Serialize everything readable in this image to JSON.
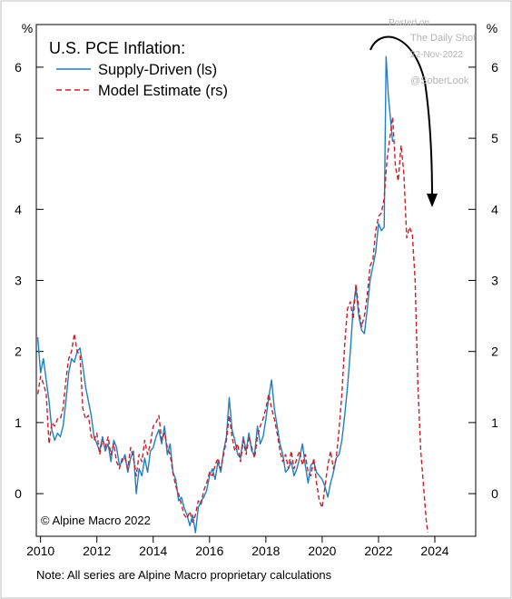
{
  "watermark": {
    "line1": "Posted on",
    "line2": "The Daily Shot",
    "line3": "22-Nov-2022",
    "line4": "@SoberLook"
  },
  "note": "Note: All series are Alpine Macro proprietary calculations",
  "chart_data": {
    "type": "line",
    "title": "U.S. PCE Inflation:",
    "credit": "© Alpine Macro 2022",
    "y_unit_label": "%",
    "ylim": [
      -0.6,
      6.6
    ],
    "yticks": [
      0,
      1,
      2,
      3,
      4,
      5,
      6
    ],
    "xlim": [
      2009.85,
      2025.45
    ],
    "xticks": [
      2010,
      2012,
      2014,
      2016,
      2018,
      2020,
      2022,
      2024
    ],
    "grid": false,
    "legend_position": "top-left",
    "annotation": "curved arrow pointing down from the 2022 peak",
    "series": [
      {
        "name": "Supply-Driven (ls)",
        "axis": "left",
        "color": "#1f7fc4",
        "style": "solid",
        "points": [
          [
            2009.9,
            2.2
          ],
          [
            2010.0,
            1.7
          ],
          [
            2010.1,
            1.9
          ],
          [
            2010.2,
            1.6
          ],
          [
            2010.3,
            1.3
          ],
          [
            2010.4,
            0.9
          ],
          [
            2010.5,
            0.75
          ],
          [
            2010.6,
            0.85
          ],
          [
            2010.7,
            0.8
          ],
          [
            2010.8,
            0.95
          ],
          [
            2010.9,
            1.3
          ],
          [
            2011.0,
            1.7
          ],
          [
            2011.1,
            1.9
          ],
          [
            2011.2,
            1.85
          ],
          [
            2011.3,
            2.0
          ],
          [
            2011.4,
            2.05
          ],
          [
            2011.5,
            1.8
          ],
          [
            2011.6,
            1.5
          ],
          [
            2011.7,
            1.3
          ],
          [
            2011.8,
            1.1
          ],
          [
            2011.9,
            0.8
          ],
          [
            2012.0,
            0.7
          ],
          [
            2012.1,
            0.6
          ],
          [
            2012.2,
            0.8
          ],
          [
            2012.3,
            0.6
          ],
          [
            2012.4,
            0.7
          ],
          [
            2012.5,
            0.45
          ],
          [
            2012.6,
            0.75
          ],
          [
            2012.7,
            0.65
          ],
          [
            2012.8,
            0.4
          ],
          [
            2012.9,
            0.45
          ],
          [
            2013.0,
            0.55
          ],
          [
            2013.1,
            0.3
          ],
          [
            2013.2,
            0.5
          ],
          [
            2013.3,
            0.6
          ],
          [
            2013.4,
            0.0
          ],
          [
            2013.5,
            0.35
          ],
          [
            2013.6,
            0.25
          ],
          [
            2013.7,
            0.5
          ],
          [
            2013.8,
            0.3
          ],
          [
            2013.9,
            0.6
          ],
          [
            2014.0,
            0.65
          ],
          [
            2014.1,
            0.8
          ],
          [
            2014.2,
            0.9
          ],
          [
            2014.3,
            0.7
          ],
          [
            2014.4,
            0.95
          ],
          [
            2014.5,
            0.55
          ],
          [
            2014.6,
            0.7
          ],
          [
            2014.7,
            0.3
          ],
          [
            2014.8,
            0.2
          ],
          [
            2014.9,
            -0.1
          ],
          [
            2015.0,
            -0.05
          ],
          [
            2015.1,
            -0.2
          ],
          [
            2015.2,
            -0.3
          ],
          [
            2015.3,
            -0.45
          ],
          [
            2015.4,
            -0.3
          ],
          [
            2015.5,
            -0.55
          ],
          [
            2015.6,
            -0.2
          ],
          [
            2015.7,
            -0.1
          ],
          [
            2015.8,
            -0.05
          ],
          [
            2015.9,
            0.05
          ],
          [
            2016.0,
            0.25
          ],
          [
            2016.1,
            0.35
          ],
          [
            2016.2,
            0.2
          ],
          [
            2016.3,
            0.45
          ],
          [
            2016.4,
            0.3
          ],
          [
            2016.5,
            0.6
          ],
          [
            2016.6,
            0.8
          ],
          [
            2016.7,
            1.35
          ],
          [
            2016.8,
            0.9
          ],
          [
            2016.9,
            0.75
          ],
          [
            2017.0,
            0.55
          ],
          [
            2017.1,
            0.5
          ],
          [
            2017.2,
            0.8
          ],
          [
            2017.3,
            0.6
          ],
          [
            2017.4,
            0.85
          ],
          [
            2017.5,
            0.6
          ],
          [
            2017.6,
            0.55
          ],
          [
            2017.7,
            0.95
          ],
          [
            2017.8,
            0.7
          ],
          [
            2017.9,
            0.8
          ],
          [
            2018.0,
            1.05
          ],
          [
            2018.1,
            1.35
          ],
          [
            2018.2,
            1.6
          ],
          [
            2018.3,
            1.2
          ],
          [
            2018.4,
            0.95
          ],
          [
            2018.5,
            0.7
          ],
          [
            2018.6,
            0.55
          ],
          [
            2018.7,
            0.3
          ],
          [
            2018.8,
            0.35
          ],
          [
            2018.9,
            0.45
          ],
          [
            2019.0,
            0.25
          ],
          [
            2019.1,
            0.35
          ],
          [
            2019.2,
            0.5
          ],
          [
            2019.3,
            0.7
          ],
          [
            2019.4,
            0.4
          ],
          [
            2019.5,
            0.15
          ],
          [
            2019.6,
            0.4
          ],
          [
            2019.7,
            0.45
          ],
          [
            2019.8,
            0.3
          ],
          [
            2019.9,
            0.25
          ],
          [
            2020.0,
            0.2
          ],
          [
            2020.1,
            0.1
          ],
          [
            2020.2,
            -0.05
          ],
          [
            2020.3,
            0.15
          ],
          [
            2020.4,
            0.3
          ],
          [
            2020.5,
            0.5
          ],
          [
            2020.6,
            0.55
          ],
          [
            2020.7,
            0.75
          ],
          [
            2020.8,
            1.1
          ],
          [
            2020.9,
            1.5
          ],
          [
            2021.0,
            2.0
          ],
          [
            2021.1,
            2.6
          ],
          [
            2021.2,
            2.9
          ],
          [
            2021.3,
            2.5
          ],
          [
            2021.4,
            2.3
          ],
          [
            2021.5,
            2.25
          ],
          [
            2021.6,
            2.6
          ],
          [
            2021.7,
            3.0
          ],
          [
            2021.8,
            3.2
          ],
          [
            2021.9,
            3.4
          ],
          [
            2022.0,
            3.8
          ],
          [
            2022.1,
            3.7
          ],
          [
            2022.2,
            3.75
          ],
          [
            2022.27,
            6.15
          ],
          [
            2022.35,
            5.6
          ],
          [
            2022.43,
            5.25
          ],
          [
            2022.5,
            4.95
          ]
        ]
      },
      {
        "name": "Model Estimate (rs)",
        "axis": "right",
        "color": "#c8202a",
        "style": "dashed",
        "points": [
          [
            2009.9,
            1.4
          ],
          [
            2010.0,
            1.65
          ],
          [
            2010.1,
            1.55
          ],
          [
            2010.2,
            1.4
          ],
          [
            2010.3,
            0.7
          ],
          [
            2010.4,
            1.0
          ],
          [
            2010.5,
            0.95
          ],
          [
            2010.6,
            1.05
          ],
          [
            2010.7,
            1.05
          ],
          [
            2010.8,
            1.2
          ],
          [
            2010.9,
            1.6
          ],
          [
            2011.0,
            1.9
          ],
          [
            2011.1,
            2.0
          ],
          [
            2011.2,
            2.25
          ],
          [
            2011.3,
            2.0
          ],
          [
            2011.4,
            1.95
          ],
          [
            2011.5,
            1.2
          ],
          [
            2011.6,
            1.05
          ],
          [
            2011.7,
            1.1
          ],
          [
            2011.8,
            0.8
          ],
          [
            2011.9,
            0.75
          ],
          [
            2012.0,
            0.85
          ],
          [
            2012.1,
            0.55
          ],
          [
            2012.2,
            0.75
          ],
          [
            2012.3,
            0.65
          ],
          [
            2012.4,
            0.8
          ],
          [
            2012.5,
            0.55
          ],
          [
            2012.6,
            0.7
          ],
          [
            2012.7,
            0.45
          ],
          [
            2012.8,
            0.35
          ],
          [
            2012.9,
            0.5
          ],
          [
            2013.0,
            0.5
          ],
          [
            2013.1,
            0.35
          ],
          [
            2013.2,
            0.65
          ],
          [
            2013.3,
            0.5
          ],
          [
            2013.4,
            0.25
          ],
          [
            2013.5,
            0.55
          ],
          [
            2013.6,
            0.45
          ],
          [
            2013.7,
            0.75
          ],
          [
            2013.8,
            0.55
          ],
          [
            2013.9,
            0.7
          ],
          [
            2014.0,
            0.95
          ],
          [
            2014.1,
            1.0
          ],
          [
            2014.2,
            1.1
          ],
          [
            2014.3,
            0.75
          ],
          [
            2014.4,
            0.85
          ],
          [
            2014.5,
            0.65
          ],
          [
            2014.6,
            0.55
          ],
          [
            2014.7,
            0.3
          ],
          [
            2014.8,
            0.1
          ],
          [
            2014.9,
            0.0
          ],
          [
            2015.0,
            -0.15
          ],
          [
            2015.1,
            -0.3
          ],
          [
            2015.2,
            -0.35
          ],
          [
            2015.3,
            -0.25
          ],
          [
            2015.4,
            -0.4
          ],
          [
            2015.5,
            -0.3
          ],
          [
            2015.6,
            -0.1
          ],
          [
            2015.7,
            -0.15
          ],
          [
            2015.8,
            0.05
          ],
          [
            2015.9,
            0.15
          ],
          [
            2016.0,
            0.3
          ],
          [
            2016.1,
            0.25
          ],
          [
            2016.2,
            0.4
          ],
          [
            2016.3,
            0.5
          ],
          [
            2016.4,
            0.35
          ],
          [
            2016.5,
            0.55
          ],
          [
            2016.6,
            0.75
          ],
          [
            2016.7,
            1.1
          ],
          [
            2016.8,
            0.8
          ],
          [
            2016.9,
            0.6
          ],
          [
            2017.0,
            0.7
          ],
          [
            2017.1,
            0.45
          ],
          [
            2017.2,
            0.75
          ],
          [
            2017.3,
            0.55
          ],
          [
            2017.4,
            0.8
          ],
          [
            2017.5,
            0.65
          ],
          [
            2017.6,
            0.5
          ],
          [
            2017.7,
            0.8
          ],
          [
            2017.8,
            0.95
          ],
          [
            2017.9,
            1.05
          ],
          [
            2018.0,
            1.2
          ],
          [
            2018.1,
            1.4
          ],
          [
            2018.2,
            1.2
          ],
          [
            2018.3,
            1.05
          ],
          [
            2018.4,
            0.85
          ],
          [
            2018.5,
            0.6
          ],
          [
            2018.6,
            0.45
          ],
          [
            2018.7,
            0.55
          ],
          [
            2018.8,
            0.35
          ],
          [
            2018.9,
            0.6
          ],
          [
            2019.0,
            0.35
          ],
          [
            2019.1,
            0.5
          ],
          [
            2019.2,
            0.6
          ],
          [
            2019.3,
            0.4
          ],
          [
            2019.4,
            0.55
          ],
          [
            2019.5,
            0.3
          ],
          [
            2019.6,
            0.25
          ],
          [
            2019.7,
            0.5
          ],
          [
            2019.8,
            0.15
          ],
          [
            2019.9,
            -0.1
          ],
          [
            2020.0,
            -0.2
          ],
          [
            2020.1,
            0.1
          ],
          [
            2020.2,
            0.4
          ],
          [
            2020.3,
            0.6
          ],
          [
            2020.4,
            0.35
          ],
          [
            2020.5,
            0.5
          ],
          [
            2020.6,
            0.9
          ],
          [
            2020.7,
            1.4
          ],
          [
            2020.8,
            2.1
          ],
          [
            2020.9,
            2.6
          ],
          [
            2021.0,
            2.7
          ],
          [
            2021.1,
            2.45
          ],
          [
            2021.2,
            2.95
          ],
          [
            2021.3,
            2.6
          ],
          [
            2021.4,
            2.35
          ],
          [
            2021.5,
            2.5
          ],
          [
            2021.6,
            2.8
          ],
          [
            2021.7,
            3.2
          ],
          [
            2021.8,
            3.3
          ],
          [
            2021.9,
            3.7
          ],
          [
            2022.0,
            3.9
          ],
          [
            2022.1,
            3.95
          ],
          [
            2022.2,
            4.15
          ],
          [
            2022.3,
            4.7
          ],
          [
            2022.4,
            5.0
          ],
          [
            2022.5,
            5.3
          ],
          [
            2022.6,
            4.6
          ],
          [
            2022.7,
            4.4
          ],
          [
            2022.8,
            4.9
          ],
          [
            2022.9,
            4.5
          ],
          [
            2023.0,
            3.6
          ],
          [
            2023.1,
            3.75
          ],
          [
            2023.2,
            3.65
          ],
          [
            2023.3,
            3.0
          ],
          [
            2023.4,
            1.5
          ],
          [
            2023.5,
            0.6
          ],
          [
            2023.6,
            0.1
          ],
          [
            2023.7,
            -0.4
          ],
          [
            2023.75,
            -0.55
          ]
        ]
      }
    ]
  }
}
